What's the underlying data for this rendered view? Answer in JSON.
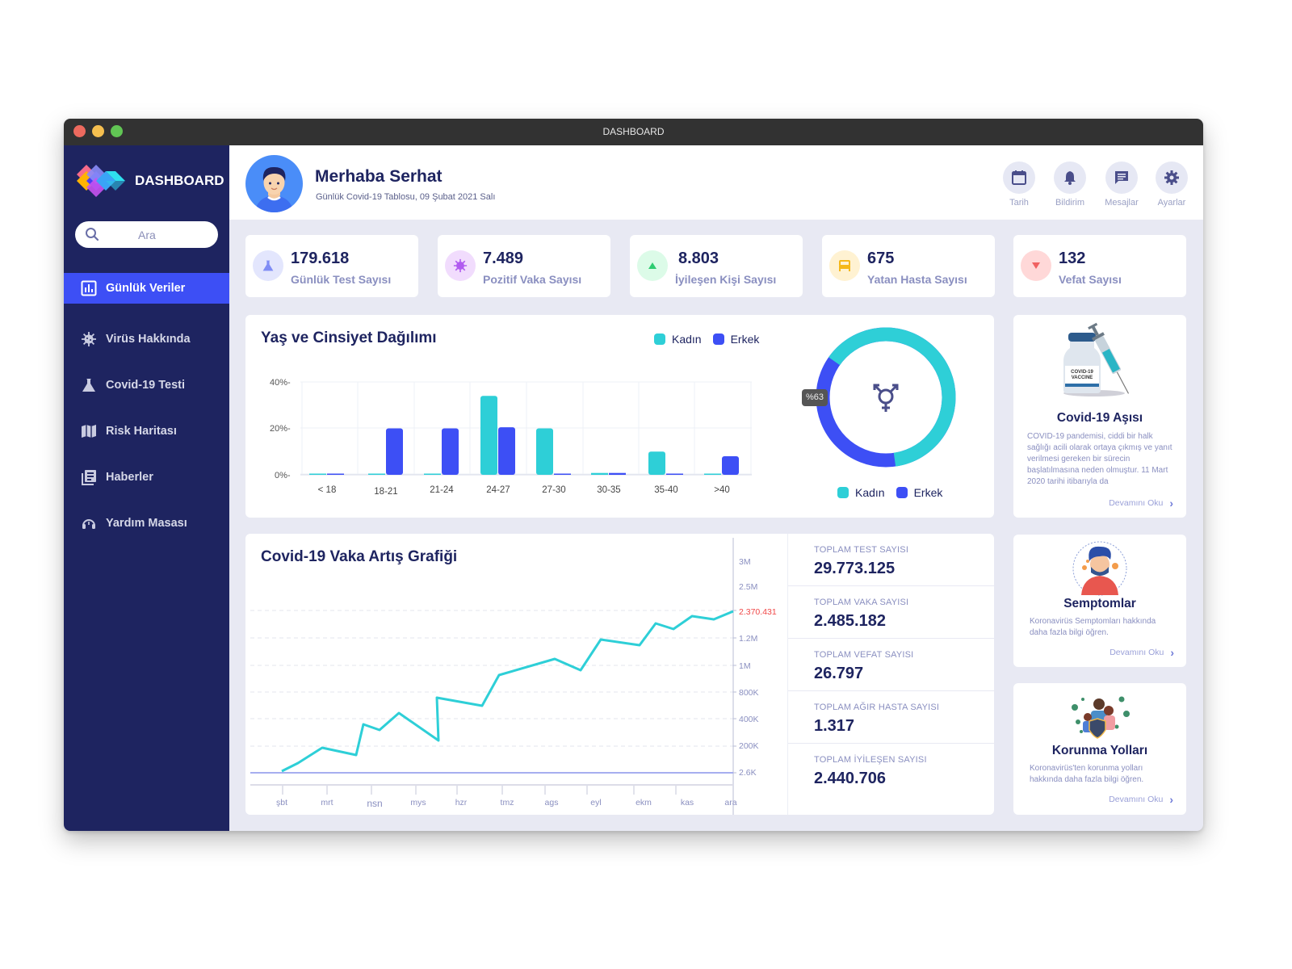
{
  "window": {
    "title": "DASHBOARD",
    "traffic_lights": [
      "#ed6a5e",
      "#f5bf4f",
      "#61c554"
    ]
  },
  "sidebar": {
    "logo_text": "DASHBOARD",
    "search_placeholder": "Ara",
    "items": [
      {
        "label": "Günlük Veriler",
        "icon": "bar-chart-icon",
        "active": true
      },
      {
        "label": "Virüs Hakkında",
        "icon": "virus-icon",
        "active": false
      },
      {
        "label": "Covid-19 Testi",
        "icon": "flask-icon",
        "active": false
      },
      {
        "label": "Risk Haritası",
        "icon": "map-icon",
        "active": false
      },
      {
        "label": "Haberler",
        "icon": "news-icon",
        "active": false
      },
      {
        "label": "Yardım Masası",
        "icon": "headset-icon",
        "active": false
      }
    ]
  },
  "header": {
    "greeting": "Merhaba Serhat",
    "subtitle": "Günlük Covid-19 Tablosu, 09 Şubat 2021 Salı",
    "buttons": [
      {
        "label": "Tarih",
        "icon": "calendar-icon"
      },
      {
        "label": "Bildirim",
        "icon": "bell-icon"
      },
      {
        "label": "Mesajlar",
        "icon": "message-icon"
      },
      {
        "label": "Ayarlar",
        "icon": "gear-icon"
      }
    ]
  },
  "stats": [
    {
      "value": "179.618",
      "label": "Günlük Test Sayısı",
      "icon": "flask-icon",
      "bg": "#e3e6fd",
      "fg": "#7f8cf5"
    },
    {
      "value": "7.489",
      "label": "Pozitif Vaka Sayısı",
      "icon": "virus-icon",
      "bg": "#f1dcfd",
      "fg": "#b15cf0"
    },
    {
      "value": "8.803",
      "label": "İyileşen Kişi Sayısı",
      "icon": "arrow-up-icon",
      "bg": "#dcfbe8",
      "fg": "#2ecc71"
    },
    {
      "value": "675",
      "label": "Yatan Hasta Sayısı",
      "icon": "bed-icon",
      "bg": "#fff2d2",
      "fg": "#f5b81a"
    },
    {
      "value": "132",
      "label": "Vefat Sayısı",
      "icon": "arrow-down-icon",
      "bg": "#ffd8d8",
      "fg": "#f06262"
    }
  ],
  "age_gender": {
    "title": "Yaş ve Cinsiyet Dağılımı",
    "legend": [
      "Kadın",
      "Erkek"
    ],
    "donut_tooltip": "%63",
    "donut_legend": [
      "Kadın",
      "Erkek"
    ]
  },
  "case_chart": {
    "title": "Covid-19 Vaka Artış Grafiği",
    "highlight_value": "2.370.431"
  },
  "totals": [
    {
      "label": "TOPLAM TEST SAYISI",
      "value": "29.773.125"
    },
    {
      "label": "TOPLAM VAKA SAYISI",
      "value": "2.485.182"
    },
    {
      "label": "TOPLAM VEFAT SAYISI",
      "value": "26.797"
    },
    {
      "label": "TOPLAM AĞIR HASTA SAYISI",
      "value": "1.317"
    },
    {
      "label": "TOPLAM İYİLEŞEN SAYISI",
      "value": "2.440.706"
    }
  ],
  "info_cards": [
    {
      "title": "Covid-19 Aşısı",
      "desc": "COVID-19 pandemisi, ciddi bir halk sağlığı acili olarak ortaya çıkmış ve yanıt verilmesi gereken bir sürecin başlatılmasına neden olmuştur. 11 Mart 2020 tarihi itibarıyla da",
      "link": "Devamını Oku"
    },
    {
      "title": "Semptomlar",
      "desc": "Koronavirüs Semptomları hakkında daha fazla bilgi öğren.",
      "link": "Devamını Oku"
    },
    {
      "title": "Korunma Yolları",
      "desc": "Koronavirüs'ten korunma yolları hakkında daha fazla bilgi öğren.",
      "link": "Devamını Oku"
    }
  ],
  "colors": {
    "sidebar": "#1e2460",
    "accent": "#3d4ff5",
    "kadin": "#2ecfd7",
    "erkek": "#3d4ff5",
    "line": "#2ecfd7",
    "highlight": "#f04848"
  },
  "chart_data": [
    {
      "type": "bar",
      "title": "Yaş ve Cinsiyet Dağılımı",
      "categories": [
        "< 18",
        "18-21",
        "21-24",
        "24-27",
        "27-30",
        "30-35",
        "35-40",
        ">40"
      ],
      "series": [
        {
          "name": "Kadın",
          "values": [
            0.5,
            0.3,
            0.4,
            34,
            20,
            0.8,
            10,
            0.5
          ]
        },
        {
          "name": "Erkek",
          "values": [
            0.5,
            20,
            20,
            20.5,
            0.3,
            0.8,
            0.5,
            8
          ]
        }
      ],
      "yticks": [
        "0%",
        "20%",
        "40%"
      ],
      "ylim": [
        0,
        40
      ],
      "xlabel": "",
      "ylabel": "",
      "legend_position": "top-right",
      "grid": true
    },
    {
      "type": "pie",
      "title": "Cinsiyet Dağılımı",
      "labels": [
        "Kadın",
        "Erkek"
      ],
      "values": [
        63,
        37
      ],
      "annotation": "%63",
      "donut": true
    },
    {
      "type": "line",
      "title": "Covid-19 Vaka Artış Grafiği",
      "x": [
        "şbt",
        "mrt",
        "nsn",
        "mys",
        "hzr",
        "tmz",
        "ags",
        "eyl",
        "ekm",
        "kas",
        "ara"
      ],
      "yticks": [
        "2.6K",
        "200K",
        "400K",
        "800K",
        "1M",
        "1.2M",
        "2.370.431",
        "2.5M",
        "3M"
      ],
      "series": [
        {
          "name": "Vaka",
          "points_norm": [
            [
              0.0,
              0.0
            ],
            [
              0.04,
              0.08
            ],
            [
              0.09,
              0.22
            ],
            [
              0.16,
              0.14
            ],
            [
              0.17,
              0.43
            ],
            [
              0.2,
              0.39
            ],
            [
              0.25,
              0.53
            ],
            [
              0.33,
              0.28
            ],
            [
              0.34,
              0.66
            ],
            [
              0.43,
              0.6
            ],
            [
              0.48,
              0.91
            ],
            [
              0.6,
              1.07
            ],
            [
              0.65,
              0.99
            ],
            [
              0.7,
              1.24
            ],
            [
              0.78,
              1.2
            ],
            [
              0.82,
              1.39
            ],
            [
              0.86,
              1.34
            ],
            [
              0.9,
              1.44
            ],
            [
              0.94,
              1.42
            ],
            [
              0.97,
              1.46
            ]
          ]
        },
        {
          "name": "Baseline",
          "value": "2.6K"
        }
      ],
      "highlight": {
        "label": "2.370.431",
        "color": "#f04848"
      },
      "grid": true
    }
  ]
}
